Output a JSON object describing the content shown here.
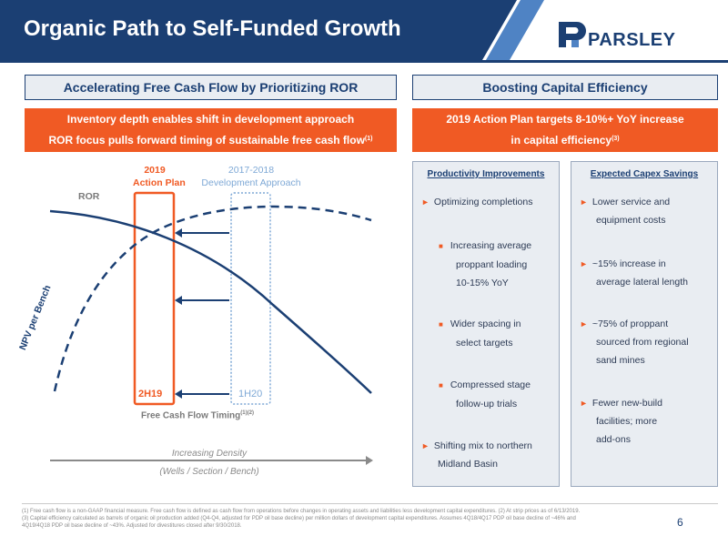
{
  "header": {
    "title": "Organic Path to Self-Funded Growth",
    "logo_text": "PARSLEY"
  },
  "left": {
    "section_title": "Accelerating Free Cash Flow by Prioritizing ROR",
    "box_line1": "Inventory depth enables shift in development approach",
    "box_line2": "ROR focus pulls forward timing of sustainable free cash flow",
    "box_line2_sup": "(1)",
    "chart": {
      "label_2019": "2019",
      "label_action_plan": "Action Plan",
      "label_2017": "2017-2018",
      "label_dev_approach": "Development Approach",
      "ror_label": "ROR",
      "npv_label": "NPV per Bench",
      "label_2h19": "2H19",
      "label_1h20": "1H20",
      "fcf_timing": "Free Cash Flow Timing",
      "fcf_timing_sup": "(1)(2)",
      "increasing_density": "Increasing Density",
      "density_sub": "(Wells / Section / Bench)"
    }
  },
  "right": {
    "section_title": "Boosting Capital Efficiency",
    "box_line1": "2019 Action Plan targets 8-10%+ YoY increase",
    "box_line2": "in capital efficiency",
    "box_line2_sup": "(3)",
    "productivity": {
      "title": "Productivity Improvements",
      "item1": "Optimizing completions",
      "sub1_a": "Increasing average",
      "sub1_b": "proppant loading",
      "sub1_c": "10-15% YoY",
      "sub2_a": "Wider spacing in",
      "sub2_b": "select targets",
      "sub3_a": "Compressed stage",
      "sub3_b": "follow-up trials",
      "item2_a": "Shifting mix to northern",
      "item2_b": "Midland Basin"
    },
    "capex": {
      "title": "Expected Capex Savings",
      "item1_a": "Lower service and",
      "item1_b": "equipment costs",
      "item2_a": "~15% increase in",
      "item2_b": "average lateral length",
      "item3_a": "~75% of proppant",
      "item3_b": "sourced from regional",
      "item3_c": "sand mines",
      "item4_a": "Fewer new-build",
      "item4_b": "facilities; more",
      "item4_c": "add-ons"
    }
  },
  "footnote": {
    "line1": "(1) Free cash flow is a non-GAAP financial measure. Free cash flow is defined as cash flow from operations before changes in operating assets and liabilities less development capital expenditures. (2) At strip prices as of 6/13/2019.",
    "line2": "(3) Capital efficiency calculated as barrels of organic oil production added (Q4-Q4, adjusted for PDP oil base decline) per million dollars of development capital expenditures. Assumes 4Q18/4Q17 PDP oil base decline of ~46% and",
    "line3": "4Q19/4Q18 PDP oil base decline of ~43%. Adjusted for divestitures closed after 9/30/2018."
  },
  "page_number": "6",
  "colors": {
    "navy": "#1b3f73",
    "orange": "#f05a24",
    "light_blue": "#7fa9d6",
    "panel_bg": "#e9edf2"
  }
}
